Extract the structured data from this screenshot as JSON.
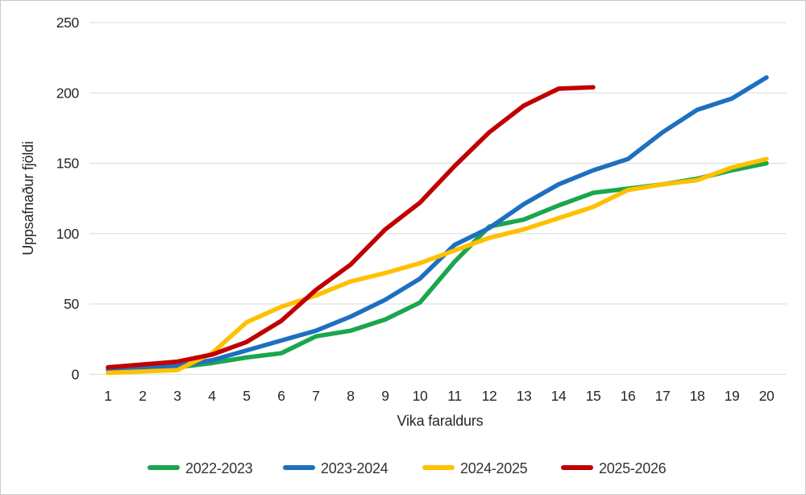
{
  "chart_data": {
    "type": "line",
    "title": "",
    "xlabel": "Vika faraldurs",
    "ylabel": "Uppsafnaður fjöldi",
    "x": [
      1,
      2,
      3,
      4,
      5,
      6,
      7,
      8,
      9,
      10,
      11,
      12,
      13,
      14,
      15,
      16,
      17,
      18,
      19,
      20
    ],
    "xlim": [
      1,
      20
    ],
    "ylim": [
      0,
      250
    ],
    "yticks": [
      0,
      50,
      100,
      150,
      200,
      250
    ],
    "grid": true,
    "legend_position": "bottom",
    "grid_color": "#d9d9d9",
    "series": [
      {
        "name": "2022-2023",
        "color": "#1aa64c",
        "values": [
          3,
          4,
          5,
          8,
          12,
          15,
          27,
          31,
          39,
          51,
          80,
          105,
          110,
          120,
          129,
          132,
          135,
          139,
          145,
          150
        ]
      },
      {
        "name": "2023-2024",
        "color": "#1e6fc0",
        "values": [
          4,
          5,
          6,
          10,
          17,
          24,
          31,
          41,
          53,
          68,
          92,
          104,
          121,
          135,
          145,
          153,
          172,
          188,
          196,
          211
        ]
      },
      {
        "name": "2024-2025",
        "color": "#ffc000",
        "values": [
          1,
          2,
          3,
          15,
          37,
          48,
          56,
          66,
          72,
          79,
          88,
          97,
          103,
          111,
          119,
          131,
          135,
          138,
          147,
          153
        ]
      },
      {
        "name": "2025-2026",
        "color": "#c00000",
        "values": [
          5,
          7,
          9,
          14,
          23,
          38,
          60,
          78,
          103,
          122,
          148,
          172,
          191,
          203,
          204
        ]
      }
    ]
  }
}
